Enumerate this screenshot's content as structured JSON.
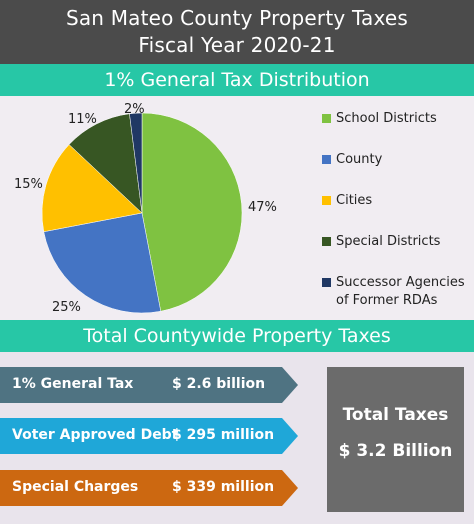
{
  "header": {
    "title_line1": "San Mateo County Property Taxes",
    "title_line2": "Fiscal Year 2020-21"
  },
  "pie_section_title": "1%  General Tax Distribution",
  "chart_data": {
    "type": "pie",
    "title": "1%  General Tax Distribution",
    "slices": [
      {
        "label": "School Districts",
        "value": 47,
        "value_label": "47%",
        "color": "#7fc241"
      },
      {
        "label": "County",
        "value": 25,
        "value_label": "25%",
        "color": "#4474c4"
      },
      {
        "label": "Cities",
        "value": 15,
        "value_label": "15%",
        "color": "#ffc000"
      },
      {
        "label": "Special Districts",
        "value": 11,
        "value_label": "11%",
        "color": "#375623"
      },
      {
        "label": "Successor Agencies of Former RDAs",
        "label_line1": "Successor Agencies",
        "label_line2": "of Former RDAs",
        "value": 2,
        "value_label": "2%",
        "color": "#203864"
      }
    ],
    "legend_position": "right"
  },
  "totals_section_title": "Total Countywide Property Taxes",
  "tax_items": [
    {
      "label": "1% General Tax",
      "value": "$ 2.6 billion",
      "color": "#4f7382"
    },
    {
      "label": "Voter Approved Debt",
      "value": "$ 295 million",
      "color": "#1fa7d8"
    },
    {
      "label": "Special Charges",
      "value": "$ 339 million",
      "color": "#cc6811"
    }
  ],
  "total_box": {
    "title": "Total Taxes",
    "value": "$ 3.2 Billion"
  }
}
